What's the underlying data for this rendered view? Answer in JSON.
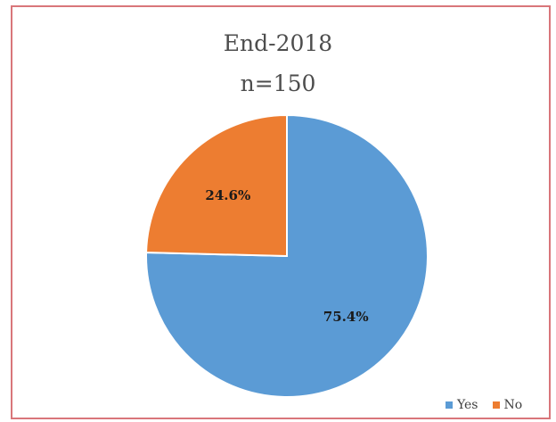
{
  "chart_data": {
    "type": "pie",
    "title": "End-2018",
    "subtitle": "n=150",
    "categories": [
      "Yes",
      "No"
    ],
    "values": [
      75.4,
      24.6
    ],
    "labels": [
      "75.4%",
      "24.6%"
    ],
    "colors": [
      "#5b9bd5",
      "#ed7d31"
    ],
    "legend": {
      "position": "bottom-right",
      "entries": [
        "Yes",
        "No"
      ]
    }
  }
}
